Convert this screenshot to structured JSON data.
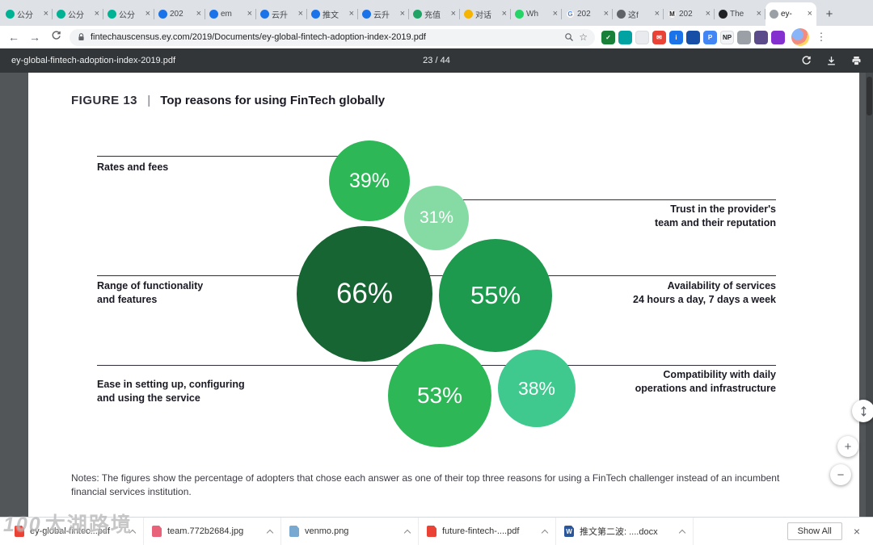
{
  "browser": {
    "active_tab_index": 15,
    "close_glyph": "×",
    "new_tab_glyph": "+",
    "tabs": [
      {
        "label": "公分",
        "fav_bg": "#00b294",
        "fav_glyph": ""
      },
      {
        "label": "公分",
        "fav_bg": "#00b294",
        "fav_glyph": ""
      },
      {
        "label": "公分",
        "fav_bg": "#00b294",
        "fav_glyph": ""
      },
      {
        "label": "202",
        "fav_bg": "#1a73e8",
        "fav_glyph": ""
      },
      {
        "label": "em",
        "fav_bg": "#1a73e8",
        "fav_glyph": ""
      },
      {
        "label": "云升",
        "fav_bg": "#1a73e8",
        "fav_glyph": ""
      },
      {
        "label": "推文",
        "fav_bg": "#1a73e8",
        "fav_glyph": ""
      },
      {
        "label": "云升",
        "fav_bg": "#1a73e8",
        "fav_glyph": ""
      },
      {
        "label": "充值",
        "fav_bg": "#21a366",
        "fav_glyph": ""
      },
      {
        "label": "对话",
        "fav_bg": "#f4b400",
        "fav_glyph": ""
      },
      {
        "label": "Wh",
        "fav_bg": "#25d366",
        "fav_glyph": ""
      },
      {
        "label": "202",
        "fav_bg": "#ffffff",
        "fav_fg": "#4285f4",
        "fav_glyph": "G"
      },
      {
        "label": "这f",
        "fav_bg": "#5f6368",
        "fav_glyph": ""
      },
      {
        "label": "202",
        "fav_bg": "#ffffff",
        "fav_fg": "#202124",
        "fav_glyph": "M"
      },
      {
        "label": "The",
        "fav_bg": "#202124",
        "fav_glyph": ""
      },
      {
        "label": "ey-",
        "fav_bg": "#9aa0a6",
        "fav_glyph": ""
      }
    ],
    "nav": {
      "back": "←",
      "forward": "→"
    },
    "url": "fintechauscensus.ey.com/2019/Documents/ey-global-fintech-adoption-index-2019.pdf",
    "star_glyph": "☆",
    "menu_glyph": "⋮",
    "extensions": [
      {
        "bg": "#188038",
        "fg": "#ffffff",
        "glyph": "✓"
      },
      {
        "bg": "#00a3a1",
        "fg": "#ffffff",
        "glyph": ""
      },
      {
        "bg": "#e8eaed",
        "fg": "#5f6368",
        "glyph": ""
      },
      {
        "bg": "#ea4335",
        "fg": "#ffffff",
        "glyph": "✉"
      },
      {
        "bg": "#1a73e8",
        "fg": "#ffffff",
        "glyph": "i"
      },
      {
        "bg": "#174ea6",
        "fg": "#ffffff",
        "glyph": ""
      },
      {
        "bg": "#4285f4",
        "fg": "#ffffff",
        "glyph": "P"
      },
      {
        "bg": "#f1f3f4",
        "fg": "#202124",
        "glyph": "NP"
      },
      {
        "bg": "#9aa0a6",
        "fg": "#ffffff",
        "glyph": ""
      },
      {
        "bg": "#5b4b8a",
        "fg": "#ffffff",
        "glyph": ""
      },
      {
        "bg": "#8430ce",
        "fg": "#ffffff",
        "glyph": ""
      }
    ]
  },
  "pdf_viewer": {
    "filename": "ey-global-fintech-adoption-index-2019.pdf",
    "page_indicator": "23 / 44",
    "zoom_in_glyph": "+",
    "zoom_out_glyph": "−"
  },
  "figure": {
    "heading": {
      "label": "FIGURE 13",
      "divider": "|",
      "title": "Top reasons for using FinTech globally"
    },
    "rows": [
      {
        "lines": [
          "Rates and fees"
        ]
      },
      {
        "lines": [
          "Trust in the provider's",
          "team and their reputation"
        ]
      },
      {
        "lines": [
          "Range of functionality",
          "and features"
        ]
      },
      {
        "lines": [
          "Availability of services",
          "24 hours a day, 7 days a week"
        ]
      },
      {
        "lines": [
          "Ease in setting up, configuring",
          "and using the service"
        ]
      },
      {
        "lines": [
          "Compatibility with daily",
          "operations and infrastructure"
        ]
      }
    ],
    "bubbles": [
      {
        "value": "39%",
        "color": "#2db757"
      },
      {
        "value": "31%",
        "color": "#86dba4"
      },
      {
        "value": "66%",
        "color": "#176532"
      },
      {
        "value": "55%",
        "color": "#1e9a4e"
      },
      {
        "value": "53%",
        "color": "#2db757"
      },
      {
        "value": "38%",
        "color": "#40c98e"
      }
    ],
    "notes": "Notes: The figures show the percentage of adopters that chose each answer as one of their top three reasons for using a FinTech challenger instead of an incumbent financial services institution."
  },
  "chart_data": {
    "type": "scatter",
    "variant": "bubble",
    "title": "Top reasons for using FinTech globally",
    "categories": [
      "Rates and fees",
      "Trust in the provider's team and their reputation",
      "Range of functionality and features",
      "Availability of services 24 hours a day, 7 days a week",
      "Ease in setting up, configuring and using the service",
      "Compatibility with daily operations and infrastructure"
    ],
    "values": [
      39,
      31,
      66,
      55,
      53,
      38
    ],
    "unit": "%",
    "legend_position": "none",
    "grid": false
  },
  "downloads": {
    "items": [
      {
        "name": "ey-global-fintec...pdf",
        "type": "pdf",
        "icon_bg": "#ea4335",
        "icon_glyph": ""
      },
      {
        "name": "team.772b2684.jpg",
        "type": "image",
        "icon_bg": "#e8627a",
        "icon_glyph": ""
      },
      {
        "name": "venmo.png",
        "type": "image",
        "icon_bg": "#78a9d1",
        "icon_glyph": ""
      },
      {
        "name": "future-fintech-....pdf",
        "type": "pdf",
        "icon_bg": "#ea4335",
        "icon_glyph": ""
      },
      {
        "name": "推文第二波: ....docx",
        "type": "doc",
        "icon_bg": "#2b579a",
        "icon_glyph": "W"
      }
    ],
    "show_all_label": "Show All",
    "close_glyph": "×"
  },
  "watermark": {
    "prefix": "100",
    "text": "太湖路境"
  }
}
